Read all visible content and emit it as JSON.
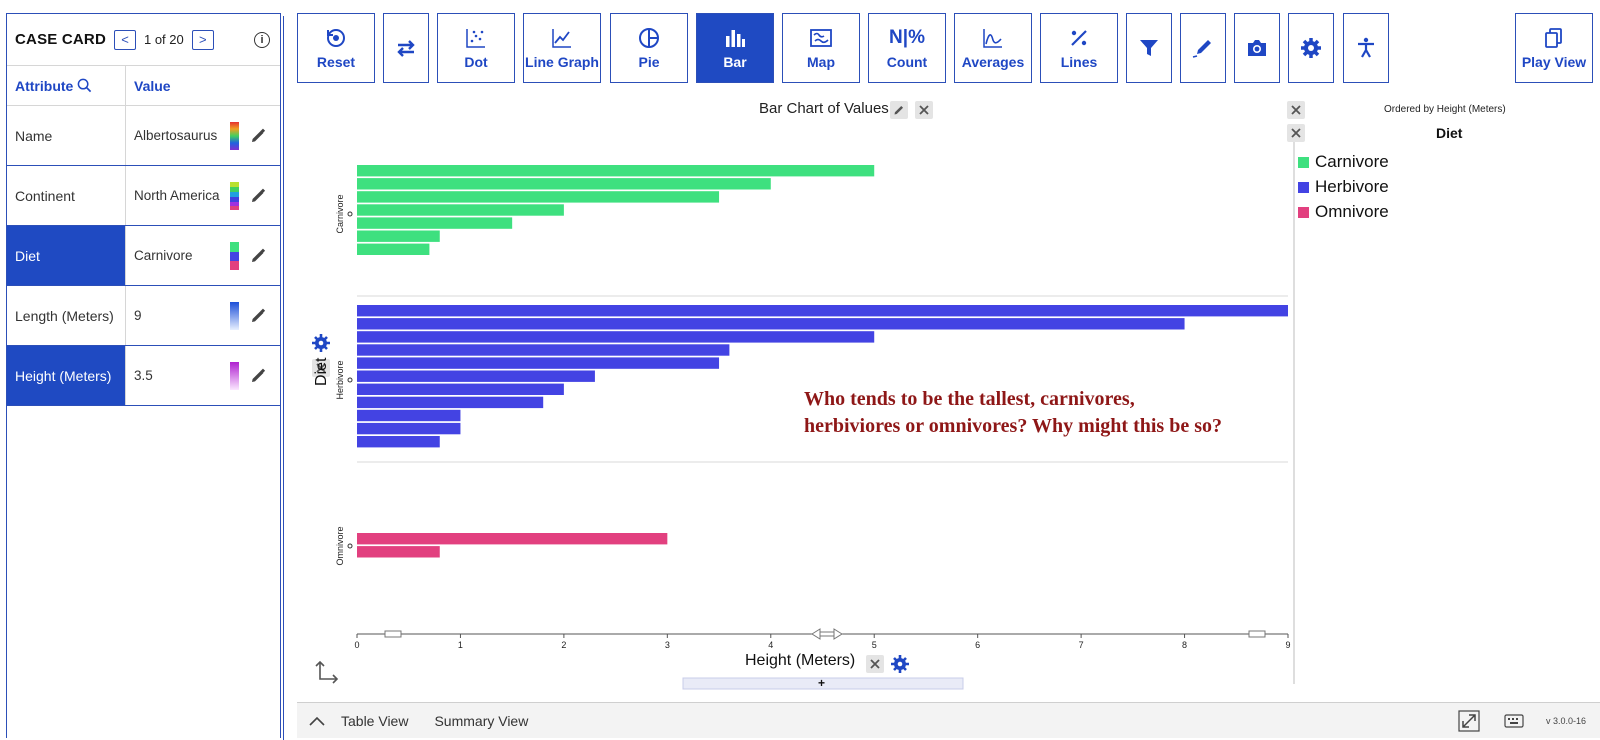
{
  "case_card": {
    "title": "CASE CARD",
    "prev": "<",
    "next": ">",
    "position": "1 of 20",
    "info": "i",
    "col_attribute": "Attribute",
    "col_value": "Value",
    "rows": [
      {
        "attribute": "Name",
        "value": "Albertosaurus",
        "selected": false
      },
      {
        "attribute": "Continent",
        "value": "North America",
        "selected": false
      },
      {
        "attribute": "Diet",
        "value": "Carnivore",
        "selected": true
      },
      {
        "attribute": "Length (Meters)",
        "value": "9",
        "selected": false
      },
      {
        "attribute": "Height (Meters)",
        "value": "3.5",
        "selected": true
      }
    ]
  },
  "toolbar": {
    "reset": "Reset",
    "dot": "Dot",
    "line_graph": "Line Graph",
    "pie": "Pie",
    "bar": "Bar",
    "map": "Map",
    "count": "Count",
    "averages": "Averages",
    "lines": "Lines",
    "play_view": "Play View",
    "count_icon": "N|%"
  },
  "graph": {
    "title": "Bar Chart of Values",
    "legend_subtitle": "Ordered by Height (Meters)",
    "legend_title": "Diet",
    "legend": [
      {
        "label": "Carnivore",
        "color": "#3ee07f"
      },
      {
        "label": "Herbivore",
        "color": "#4343e3"
      },
      {
        "label": "Omnivore",
        "color": "#e2407f"
      }
    ],
    "question_line1": "Who tends to be the tallest, carnivores,",
    "question_line2": "herbiviores or omnivores? Why might this be so?",
    "y_axis_label": "Diet",
    "x_axis_label": "Height (Meters)",
    "plus": "+"
  },
  "chart_data": {
    "type": "bar",
    "orientation": "horizontal",
    "title": "Bar Chart of Values",
    "xlabel": "Height (Meters)",
    "ylabel": "Diet",
    "xlim": [
      0,
      9
    ],
    "x_ticks": [
      "0",
      "1",
      "2",
      "3",
      "4",
      "5",
      "6",
      "7",
      "8",
      "9"
    ],
    "series": [
      {
        "name": "Carnivore",
        "color": "#3ee07f",
        "values": [
          5,
          4,
          3.5,
          2,
          1.5,
          0.8,
          0.7
        ]
      },
      {
        "name": "Herbivore",
        "color": "#4343e3",
        "values": [
          9,
          8,
          5,
          3.6,
          3.5,
          2.3,
          2,
          1.8,
          1,
          1,
          0.8
        ]
      },
      {
        "name": "Omnivore",
        "color": "#e2407f",
        "values": [
          3,
          0.8
        ]
      }
    ]
  },
  "bottom": {
    "collapse": "^",
    "table_view": "Table View",
    "summary_view": "Summary View",
    "version": "v 3.0.0-16"
  }
}
